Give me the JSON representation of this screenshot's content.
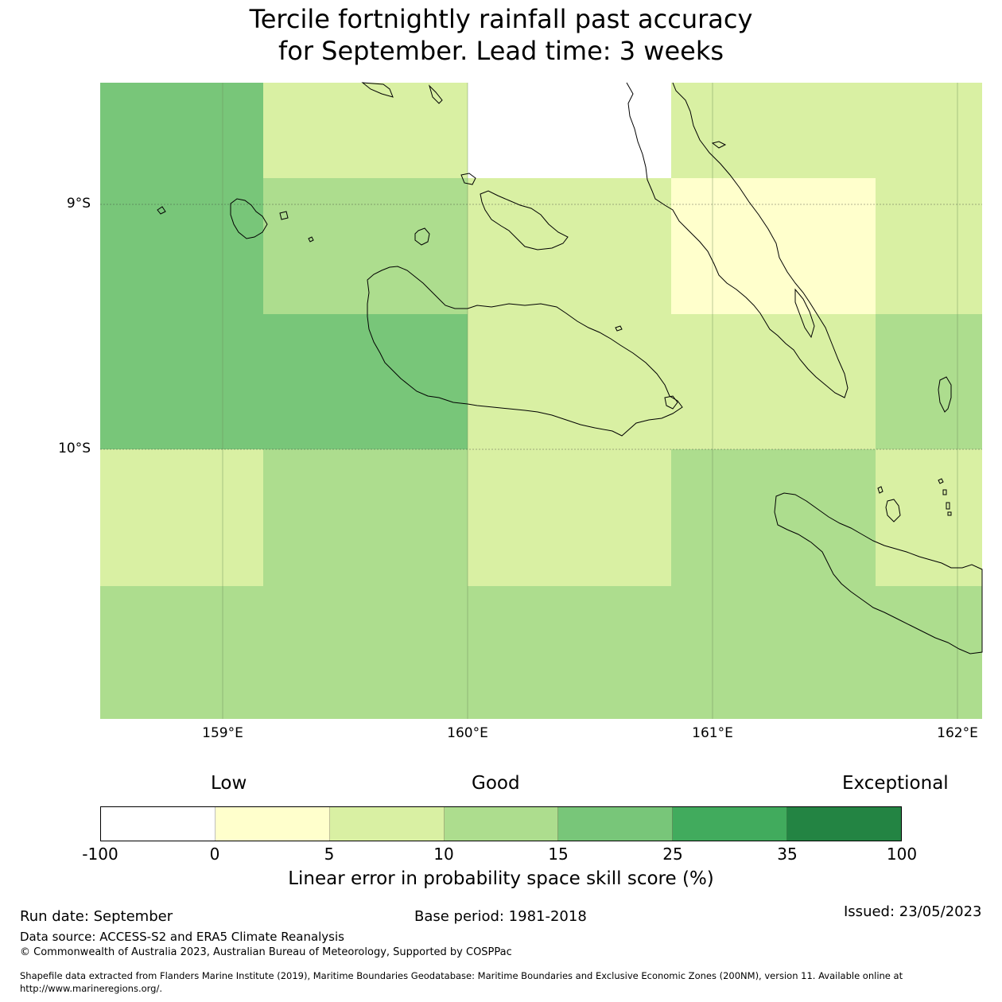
{
  "title": {
    "line1": "Tercile fortnightly rainfall past accuracy",
    "line2": "for September. Lead time: 3 weeks"
  },
  "map": {
    "lat_labels": [
      "9°S",
      "10°S"
    ],
    "lon_labels": [
      "159°E",
      "160°E",
      "161°E",
      "162°E"
    ],
    "extent": {
      "lon_min": 158.5,
      "lon_max": 162.1,
      "lat_min": -11.1,
      "lat_max": -8.5
    },
    "grid_cells_skill_class": [
      [
        4,
        2,
        0,
        2,
        2
      ],
      [
        4,
        3,
        2,
        1,
        2
      ],
      [
        4,
        4,
        2,
        2,
        3
      ],
      [
        2,
        3,
        2,
        3,
        2
      ],
      [
        3,
        3,
        3,
        3,
        3
      ]
    ],
    "colors": [
      "#ffffff",
      "#ffffcc",
      "#d9f0a3",
      "#addd8e",
      "#78c679",
      "#41ab5d",
      "#238443"
    ]
  },
  "colorbar": {
    "category_low": "Low",
    "category_good": "Good",
    "category_exceptional": "Exceptional",
    "ticks": [
      "-100",
      "0",
      "5",
      "10",
      "15",
      "25",
      "35",
      "100"
    ],
    "label": "Linear error in probability space skill score (%)"
  },
  "footer": {
    "run_date": "Run date: September",
    "base_period": "Base period: 1981-2018",
    "issued": "Issued: 23/05/2023",
    "data_source": "Data source: ACCESS-S2 and ERA5 Climate Reanalysis",
    "copyright": "© Commonwealth of Australia 2023, Australian Bureau of Meteorology, Supported by COSPPac",
    "shapefile_line1": "Shapefile data extracted from Flanders Marine Institute (2019), Maritime Boundaries Geodatabase: Maritime Boundaries and Exclusive Economic Zones (200NM), version 11. Available online at",
    "shapefile_line2": "http://www.marineregions.org/."
  }
}
